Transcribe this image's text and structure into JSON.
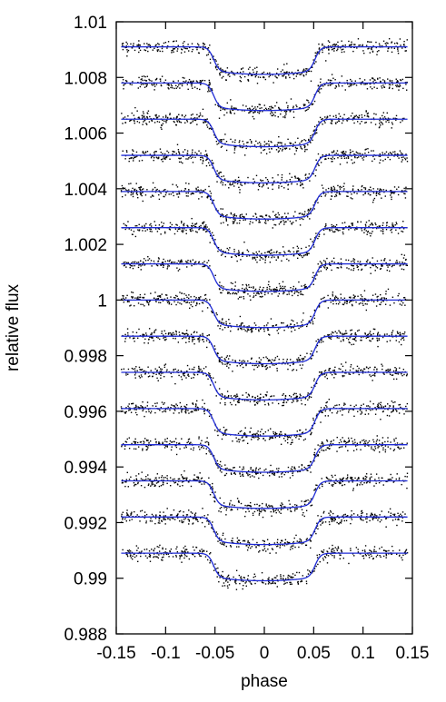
{
  "chart_data": {
    "type": "scatter",
    "title": "",
    "xlabel": "phase",
    "ylabel": "relative flux",
    "xlim": [
      -0.15,
      0.15
    ],
    "ylim": [
      0.988,
      1.01
    ],
    "xticks": [
      -0.15,
      -0.1,
      -0.05,
      0,
      0.05,
      0.1,
      0.15
    ],
    "xtick_labels": [
      "-0.15",
      "-0.1",
      "-0.05",
      "0",
      "0.05",
      "0.1",
      "0.15"
    ],
    "yticks": [
      0.988,
      0.99,
      0.992,
      0.994,
      0.996,
      0.998,
      1,
      1.002,
      1.004,
      1.006,
      1.008,
      1.01
    ],
    "ytick_labels": [
      "0.988",
      "0.99",
      "0.992",
      "0.994",
      "0.996",
      "0.998",
      "1",
      "1.002",
      "1.004",
      "1.006",
      "1.008",
      "1.01"
    ],
    "grid": false,
    "legend": "none",
    "x_range_data": [
      -0.145,
      0.145
    ],
    "points_per_curve": 420,
    "scatter_scatter_sigma": 0.00012,
    "transit": {
      "depth": 0.00087,
      "t14_half": 0.0515,
      "ingress_width": 0.011,
      "limb_darkening_curvature": 0.00012
    },
    "series": [
      {
        "baseline": 1.0091
      },
      {
        "baseline": 1.0078
      },
      {
        "baseline": 1.0065
      },
      {
        "baseline": 1.0052
      },
      {
        "baseline": 1.0039
      },
      {
        "baseline": 1.0026
      },
      {
        "baseline": 1.0013
      },
      {
        "baseline": 1.0
      },
      {
        "baseline": 0.9987
      },
      {
        "baseline": 0.9974
      },
      {
        "baseline": 0.9961
      },
      {
        "baseline": 0.9948
      },
      {
        "baseline": 0.9935
      },
      {
        "baseline": 0.9922
      },
      {
        "baseline": 0.9909
      }
    ],
    "colors": {
      "model": "#1f2bd6",
      "points": "#000000",
      "axes": "#000000"
    }
  }
}
